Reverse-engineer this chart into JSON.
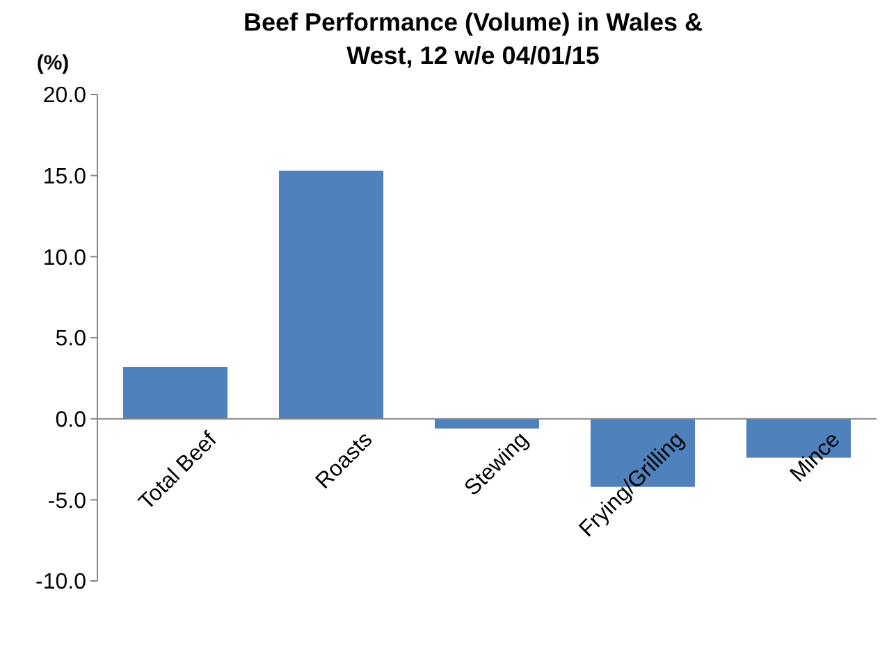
{
  "chart_data": {
    "type": "bar",
    "title": "Beef Performance (Volume) in Wales & West, 12 w/e 04/01/15",
    "ylabel": "(%)",
    "categories": [
      "Total Beef",
      "Roasts",
      "Stewing",
      "Frying/Grilling",
      "Mince"
    ],
    "values": [
      3.2,
      15.3,
      -0.6,
      -4.2,
      -2.4
    ],
    "color": "#4f81bd",
    "ylim": [
      -10,
      20
    ],
    "yticks": [
      {
        "value": -10,
        "label": "-10.0"
      },
      {
        "value": -5,
        "label": "-5.0"
      },
      {
        "value": 0,
        "label": "0.0"
      },
      {
        "value": 5,
        "label": "5.0"
      },
      {
        "value": 10,
        "label": "10.0"
      },
      {
        "value": 15,
        "label": "15.0"
      },
      {
        "value": 20,
        "label": "20.0"
      }
    ],
    "grid": false
  }
}
